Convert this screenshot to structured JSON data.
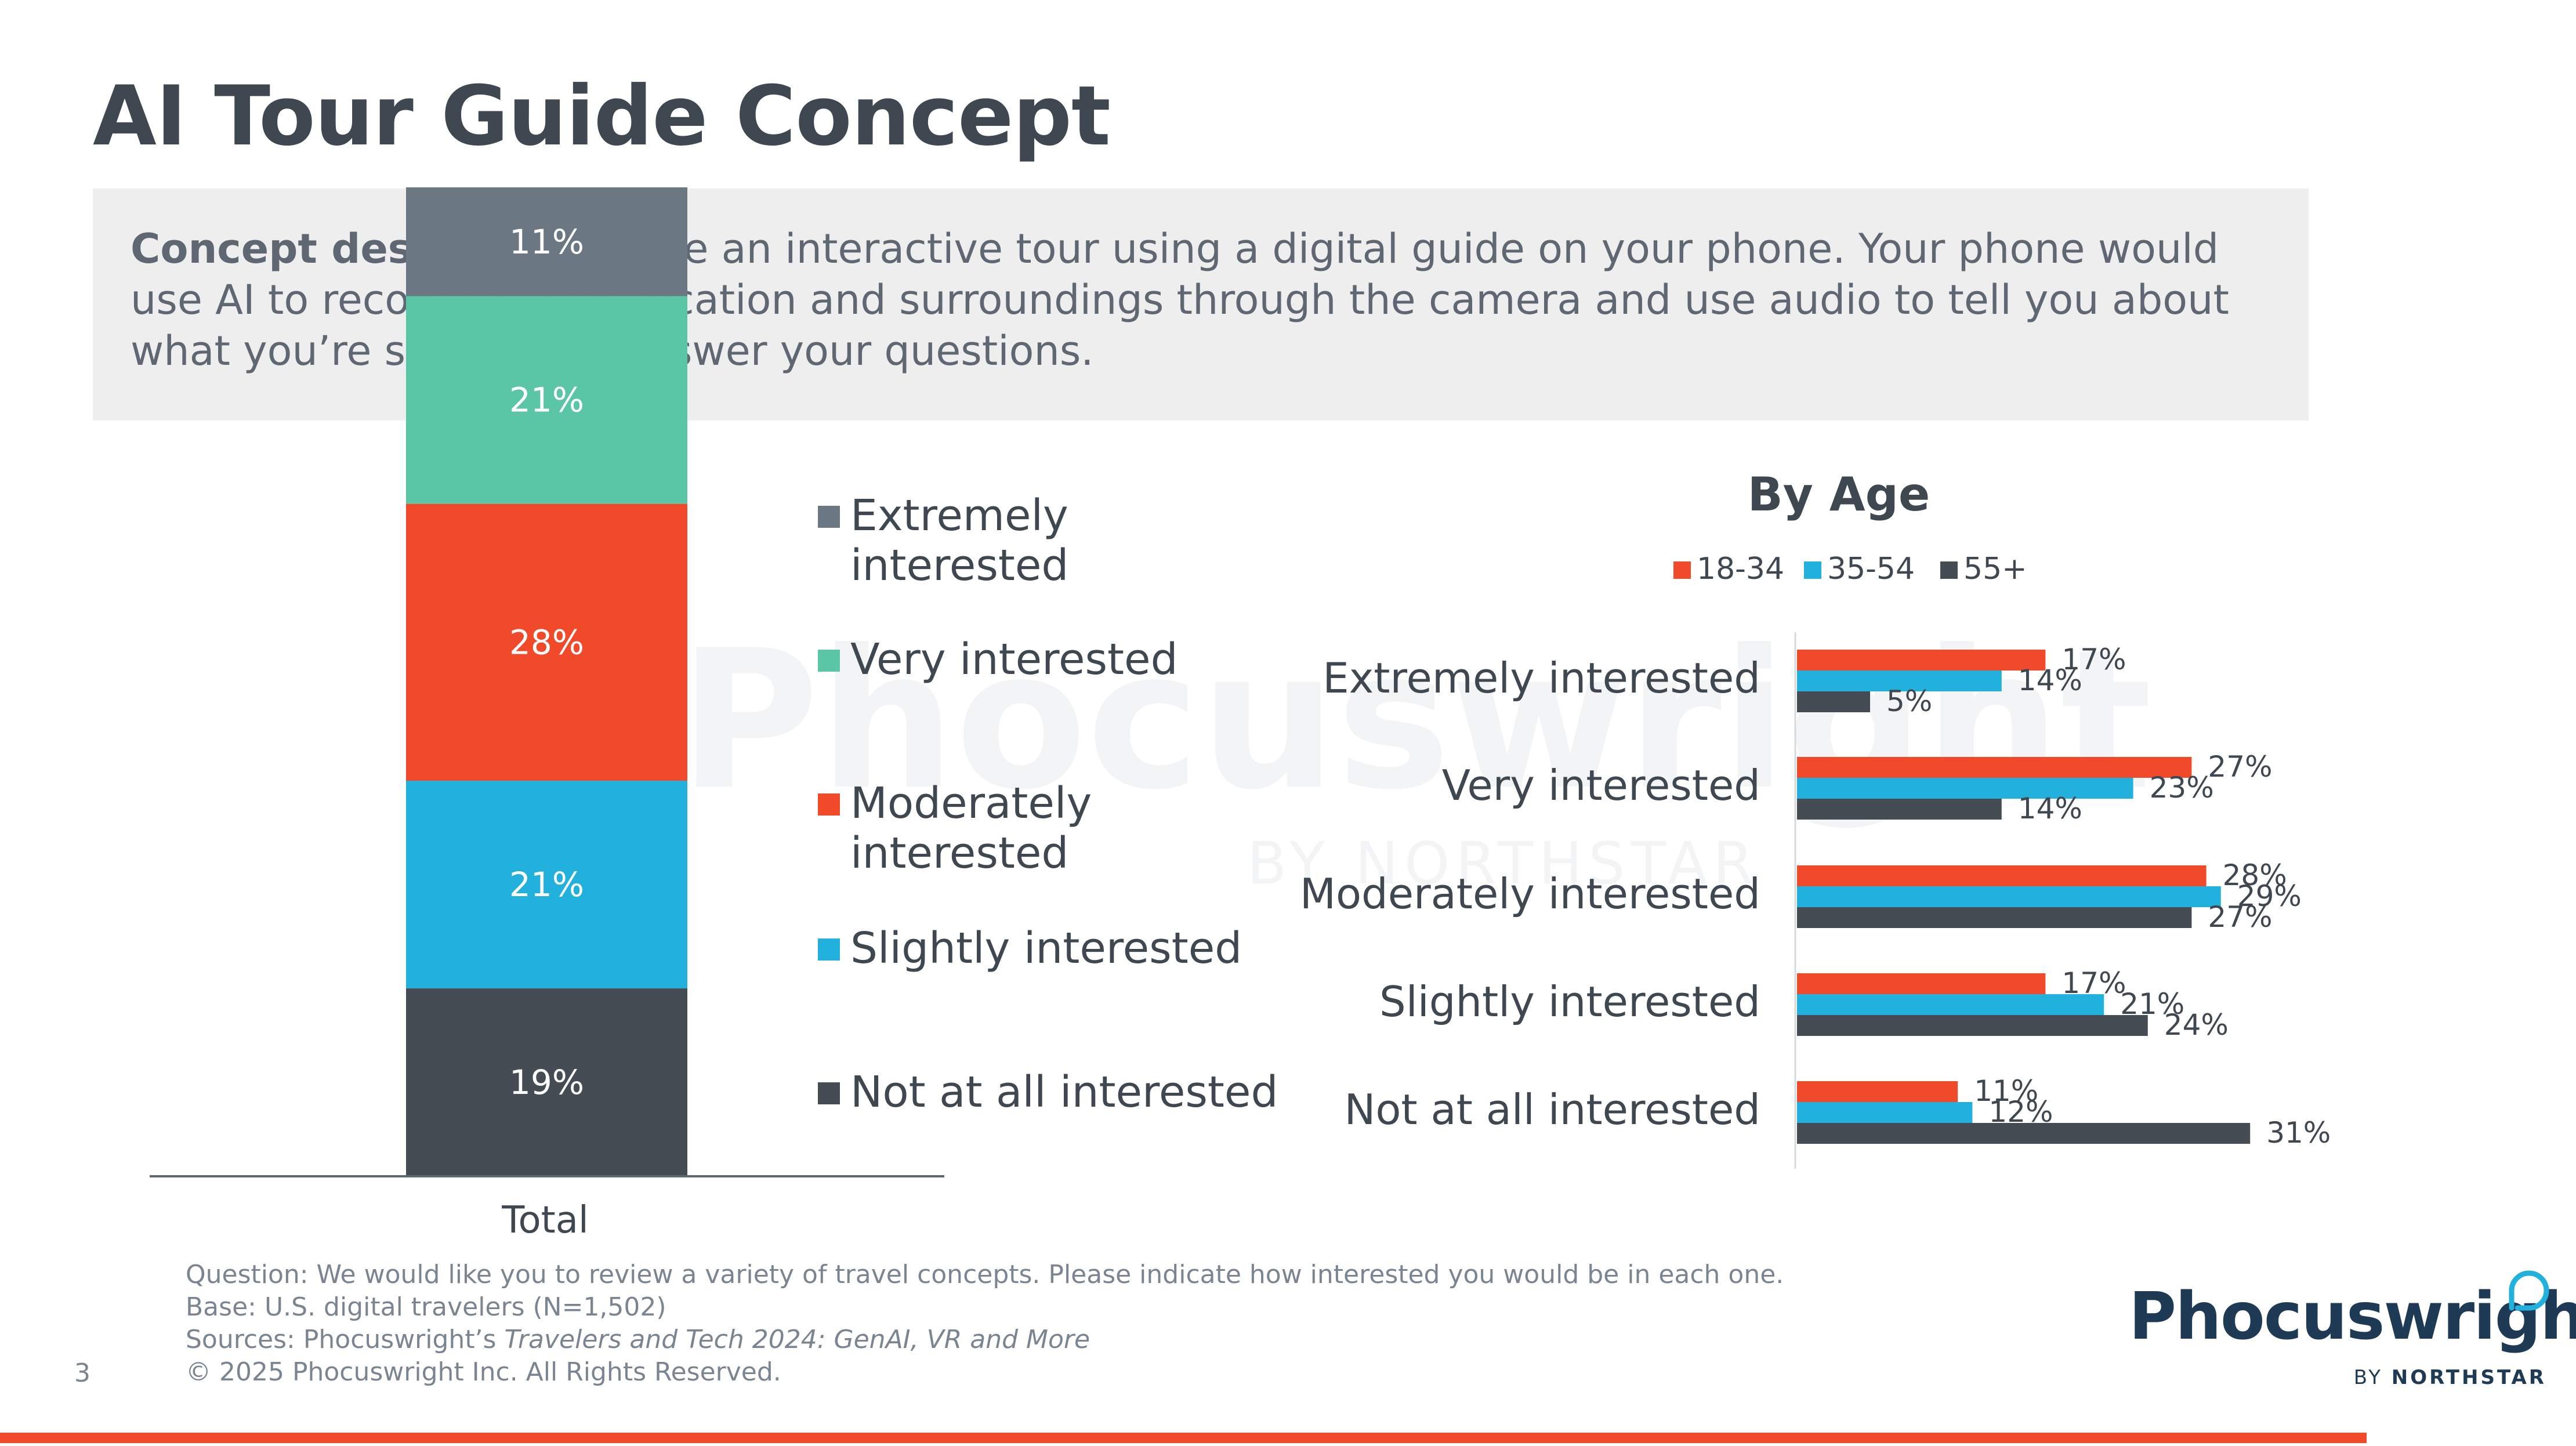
{
  "title": "AI Tour Guide Concept",
  "description": {
    "lead": "Concept description:",
    "text": " Take an interactive tour using a digital guide on your phone. Your phone would use AI to recognize your location and surroundings through the camera and use audio to tell you about what you’re seeing and answer your questions."
  },
  "watermark": {
    "name": "Phocuswright",
    "sub": "BY NORTHSTAR"
  },
  "colors": {
    "extremely": "#6b7884",
    "very": "#5bc6a6",
    "moderately": "#f04a2b",
    "slightly": "#22b1dc",
    "not_at_all": "#454c54",
    "age_18_34": "#f04a2b",
    "age_35_54": "#22b1dc",
    "age_55_plus": "#454c54"
  },
  "chart_data": [
    {
      "type": "bar",
      "stacked": true,
      "categories": [
        "Total"
      ],
      "series": [
        {
          "name": "Not at all interested",
          "values": [
            19
          ],
          "label": "19%"
        },
        {
          "name": "Slightly interested",
          "values": [
            21
          ],
          "label": "21%"
        },
        {
          "name": "Moderately interested",
          "values": [
            28
          ],
          "label": "28%"
        },
        {
          "name": "Very interested",
          "values": [
            21
          ],
          "label": "21%"
        },
        {
          "name": "Extremely interested",
          "values": [
            11
          ],
          "label": "11%"
        }
      ],
      "legend": [
        "Extremely interested",
        "Very interested",
        "Moderately interested",
        "Slightly interested",
        "Not at all interested"
      ],
      "legend_position": "right"
    },
    {
      "type": "bar",
      "orientation": "horizontal",
      "title": "By Age",
      "categories": [
        "Extremely interested",
        "Very interested",
        "Moderately interested",
        "Slightly interested",
        "Not at all interested"
      ],
      "series": [
        {
          "name": "18-34",
          "values": [
            17,
            27,
            28,
            17,
            11
          ]
        },
        {
          "name": "35-54",
          "values": [
            14,
            23,
            29,
            21,
            12
          ]
        },
        {
          "name": "55+",
          "values": [
            5,
            14,
            27,
            24,
            31
          ]
        }
      ],
      "legend_position": "top"
    }
  ],
  "footnote": {
    "question": "Question: We would like you to review a variety of travel concepts. Please indicate how interested you would be in each one.",
    "base": "Base: U.S. digital travelers (N=1,502)",
    "sources_prefix": "Sources: Phocuswright’s ",
    "sources_title": "Travelers and Tech 2024: GenAI, VR and More",
    "copyright": "© 2025 Phocuswright Inc. All Rights Reserved."
  },
  "page_number": "3",
  "logo": {
    "name": "Phocuswright",
    "by": "BY",
    "brand": "NORTHSTAR"
  }
}
